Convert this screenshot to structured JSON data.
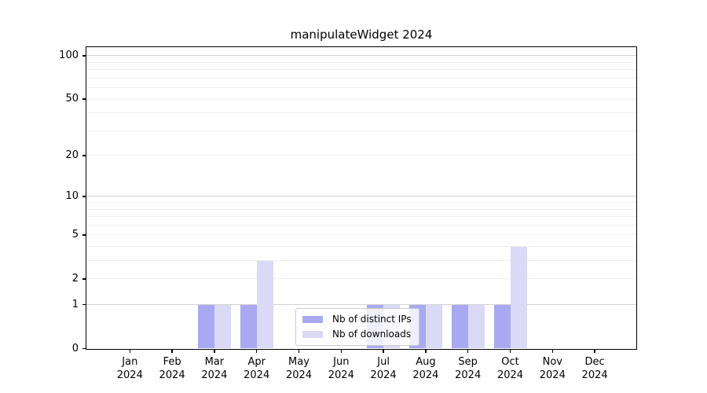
{
  "figure": {
    "title": "manipulateWidget 2024",
    "background": "#ffffff",
    "axis_color": "#000000",
    "major_grid_color": "#d2d2d2",
    "minor_grid_color": "#efefef"
  },
  "chart_data": {
    "type": "bar",
    "title": "manipulateWidget 2024",
    "xlabel": "",
    "ylabel": "",
    "categories": [
      {
        "month": "Jan",
        "year": "2024"
      },
      {
        "month": "Feb",
        "year": "2024"
      },
      {
        "month": "Mar",
        "year": "2024"
      },
      {
        "month": "Apr",
        "year": "2024"
      },
      {
        "month": "May",
        "year": "2024"
      },
      {
        "month": "Jun",
        "year": "2024"
      },
      {
        "month": "Jul",
        "year": "2024"
      },
      {
        "month": "Aug",
        "year": "2024"
      },
      {
        "month": "Sep",
        "year": "2024"
      },
      {
        "month": "Oct",
        "year": "2024"
      },
      {
        "month": "Nov",
        "year": "2024"
      },
      {
        "month": "Dec",
        "year": "2024"
      }
    ],
    "series": [
      {
        "name": "Nb of distinct IPs",
        "color": "#a9a9f3",
        "values": [
          0,
          0,
          1,
          1,
          0,
          0,
          1,
          1,
          1,
          1,
          0,
          0
        ]
      },
      {
        "name": "Nb of downloads",
        "color": "#dadaf6",
        "values": [
          0,
          0,
          1,
          3,
          0,
          0,
          1,
          1,
          1,
          4,
          0,
          0
        ]
      }
    ],
    "yscale": "log1p",
    "ylim": [
      0,
      114
    ],
    "y_tick_labels": [
      "0",
      "1",
      "2",
      "5",
      "10",
      "20",
      "50",
      "100"
    ],
    "y_tick_values": [
      0,
      1,
      2,
      5,
      10,
      20,
      50,
      100
    ],
    "y_gridlines_major": [
      1,
      10,
      100
    ],
    "y_gridlines_minor": [
      2,
      3,
      4,
      5,
      6,
      7,
      8,
      9,
      20,
      30,
      40,
      50,
      60,
      70,
      80,
      90
    ],
    "grid": true,
    "legend_position": "lower-center"
  }
}
